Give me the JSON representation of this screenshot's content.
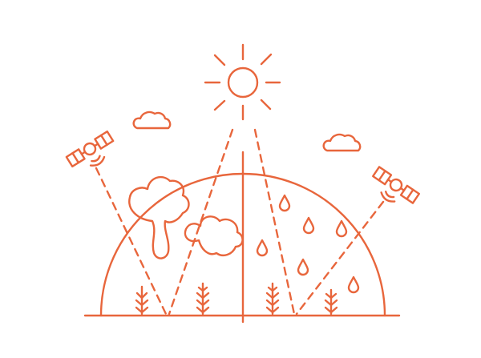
{
  "illustration": {
    "subject": "satellite-remote-sensing-of-earth",
    "stroke_color": "#e8663c",
    "background_color": "#ffffff",
    "icons": [
      "sun-icon",
      "cloud-icon",
      "satellite-icon",
      "smoke-plume-icon",
      "rain-drop-icon",
      "crop-sprout-icon"
    ],
    "earth_halves": [
      "smoke",
      "rain"
    ],
    "rain_drop_count": 6,
    "sprouts_per_half": 2
  }
}
